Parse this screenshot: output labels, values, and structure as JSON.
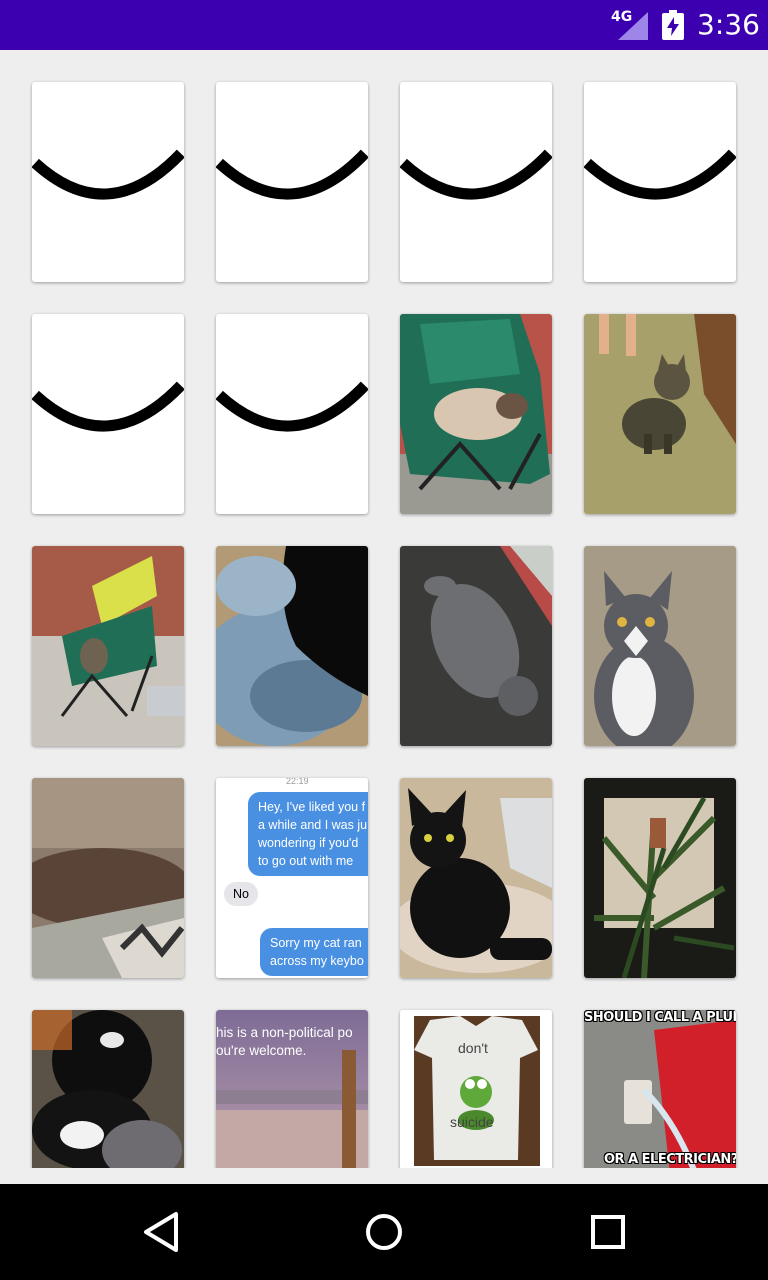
{
  "status_bar": {
    "network": "4G",
    "time": "3:36"
  },
  "grid": {
    "hidden_cards": 6,
    "photos": [
      {
        "id": "siamese-in-chair"
      },
      {
        "id": "tabby-on-floor"
      },
      {
        "id": "tabby-under-chairs"
      },
      {
        "id": "black-cat-at-fountain"
      },
      {
        "id": "gray-cat-on-back"
      },
      {
        "id": "gray-white-cat"
      },
      {
        "id": "cushion-blur"
      },
      {
        "id": "text-message"
      },
      {
        "id": "black-cat-on-pillow"
      },
      {
        "id": "plants-window"
      },
      {
        "id": "black-white-cats-sleeping"
      },
      {
        "id": "beach-post"
      },
      {
        "id": "kermit-shirt"
      },
      {
        "id": "plumber-meme"
      }
    ]
  },
  "texts": {
    "message_time": "22:19",
    "message_1": "Hey, I've liked you f\na while and I was ju\nwondering if you'd\nto go out with me",
    "message_reply": "No",
    "message_2": "Sorry my cat ran\nacross my keybo",
    "beach_caption": "his is a non-political po\nou're welcome.",
    "shirt_top": "don't",
    "shirt_bottom": "suicide",
    "meme_top": "SHOULD I CALL A PLUMBI",
    "meme_bottom": "OR A ELECTRICIAN?"
  }
}
